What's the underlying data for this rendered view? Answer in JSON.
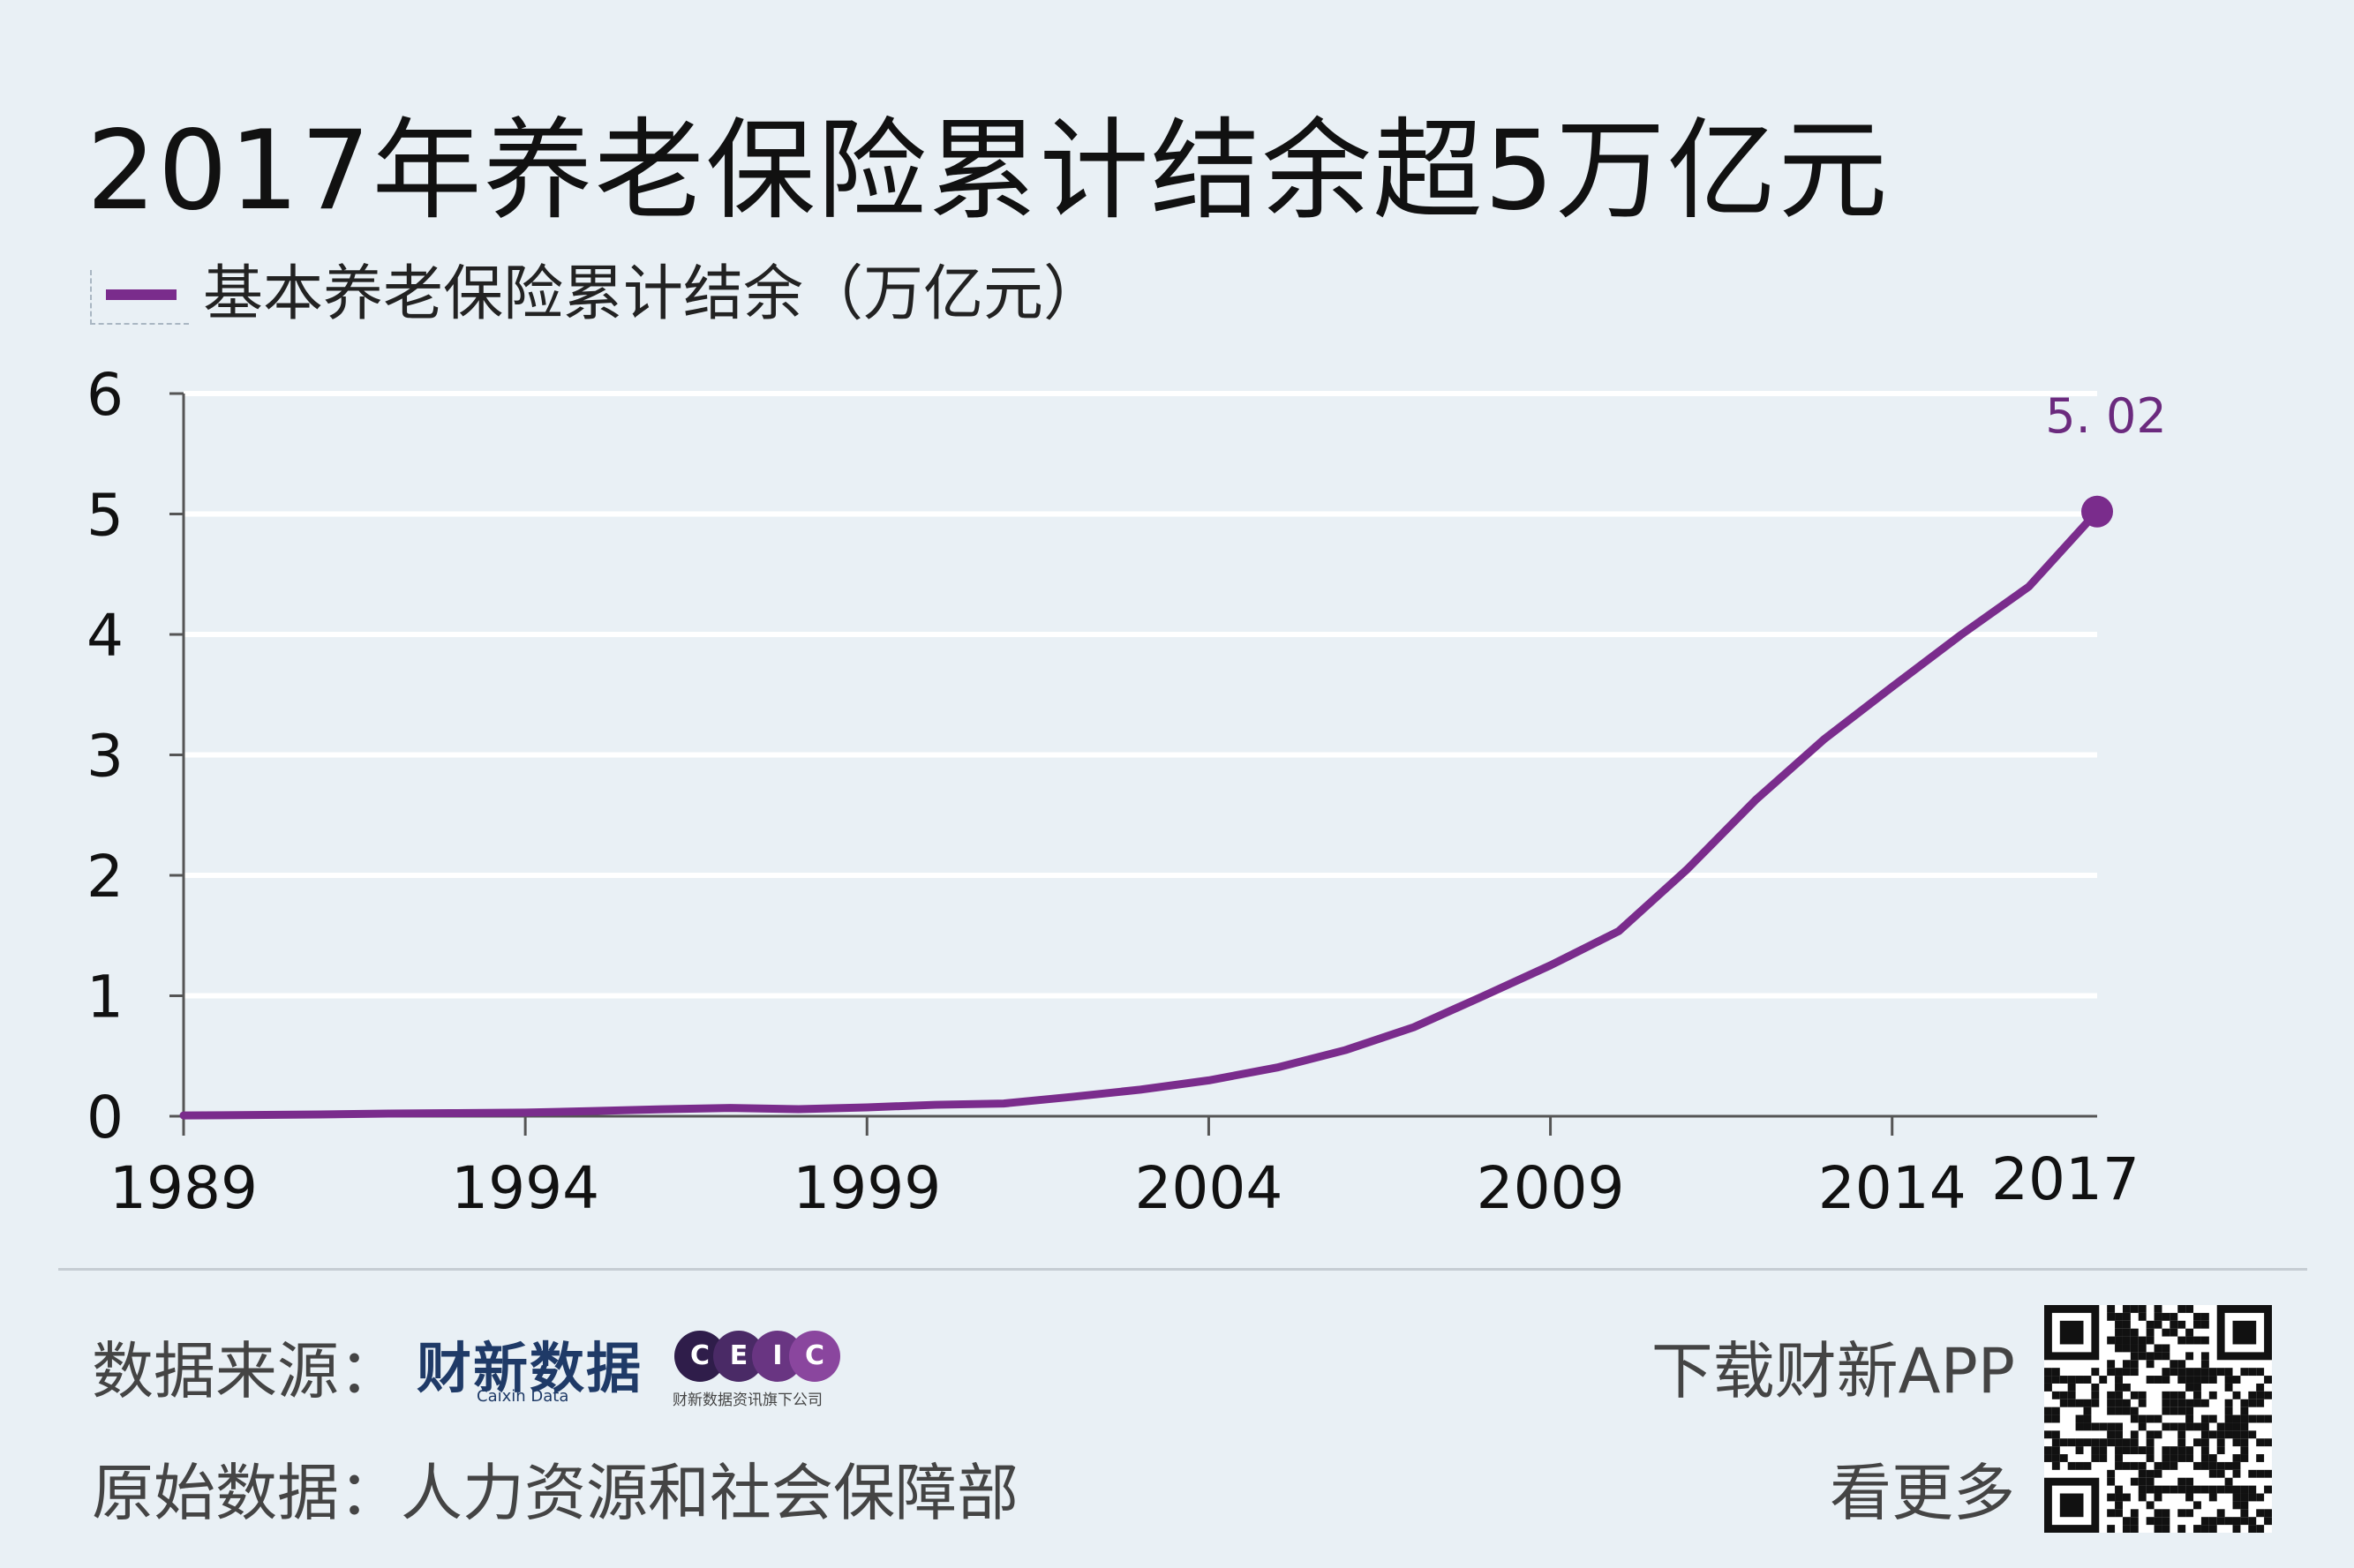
{
  "header": {
    "title": "2017年养老保险累计结余超5万亿元"
  },
  "colors": {
    "series": "#7a2c8c",
    "axis": "#555555",
    "grid": "#ffffff",
    "label": "#6b2a7e"
  },
  "chart_data": {
    "type": "line",
    "title": "2017年养老保险累计结余超5万亿元",
    "xlabel": "",
    "ylabel": "",
    "xlim": [
      1989,
      2017
    ],
    "ylim": [
      0,
      6
    ],
    "x_ticks": [
      "1989",
      "1994",
      "1999",
      "2004",
      "2009",
      "2014",
      "2017"
    ],
    "y_ticks": [
      "0",
      "1",
      "2",
      "3",
      "4",
      "5",
      "6"
    ],
    "grid": true,
    "legend": "top-left",
    "series": [
      {
        "name": "基本养老保险累计结余（万亿元）",
        "x": [
          1989,
          1990,
          1991,
          1992,
          1993,
          1994,
          1995,
          1996,
          1997,
          1998,
          1999,
          2000,
          2001,
          2002,
          2003,
          2004,
          2005,
          2006,
          2007,
          2008,
          2009,
          2010,
          2011,
          2012,
          2013,
          2014,
          2015,
          2016,
          2017
        ],
        "values": [
          0.0068,
          0.0098,
          0.0145,
          0.022,
          0.0258,
          0.0305,
          0.0429,
          0.0579,
          0.0683,
          0.0588,
          0.0734,
          0.0948,
          0.1054,
          0.1608,
          0.2207,
          0.2975,
          0.4041,
          0.5489,
          0.7391,
          0.9931,
          1.2526,
          1.5365,
          2.0496,
          2.6243,
          3.1275,
          3.5645,
          3.9937,
          4.3965,
          5.02
        ]
      }
    ],
    "annotations": [
      {
        "x": 2017,
        "text": "5. 02"
      }
    ]
  },
  "footer": {
    "source_label": "数据来源：",
    "caixin_logo": "财新数据",
    "caixin_sub": "Caixin Data",
    "ceic_letters": [
      "C",
      "E",
      "I",
      "C"
    ],
    "ceic_sub": "财新数据资讯旗下公司",
    "origin_label": "原始数据：人力资源和社会保障部",
    "download_label": "下载财新APP",
    "more_label": "看更多"
  }
}
